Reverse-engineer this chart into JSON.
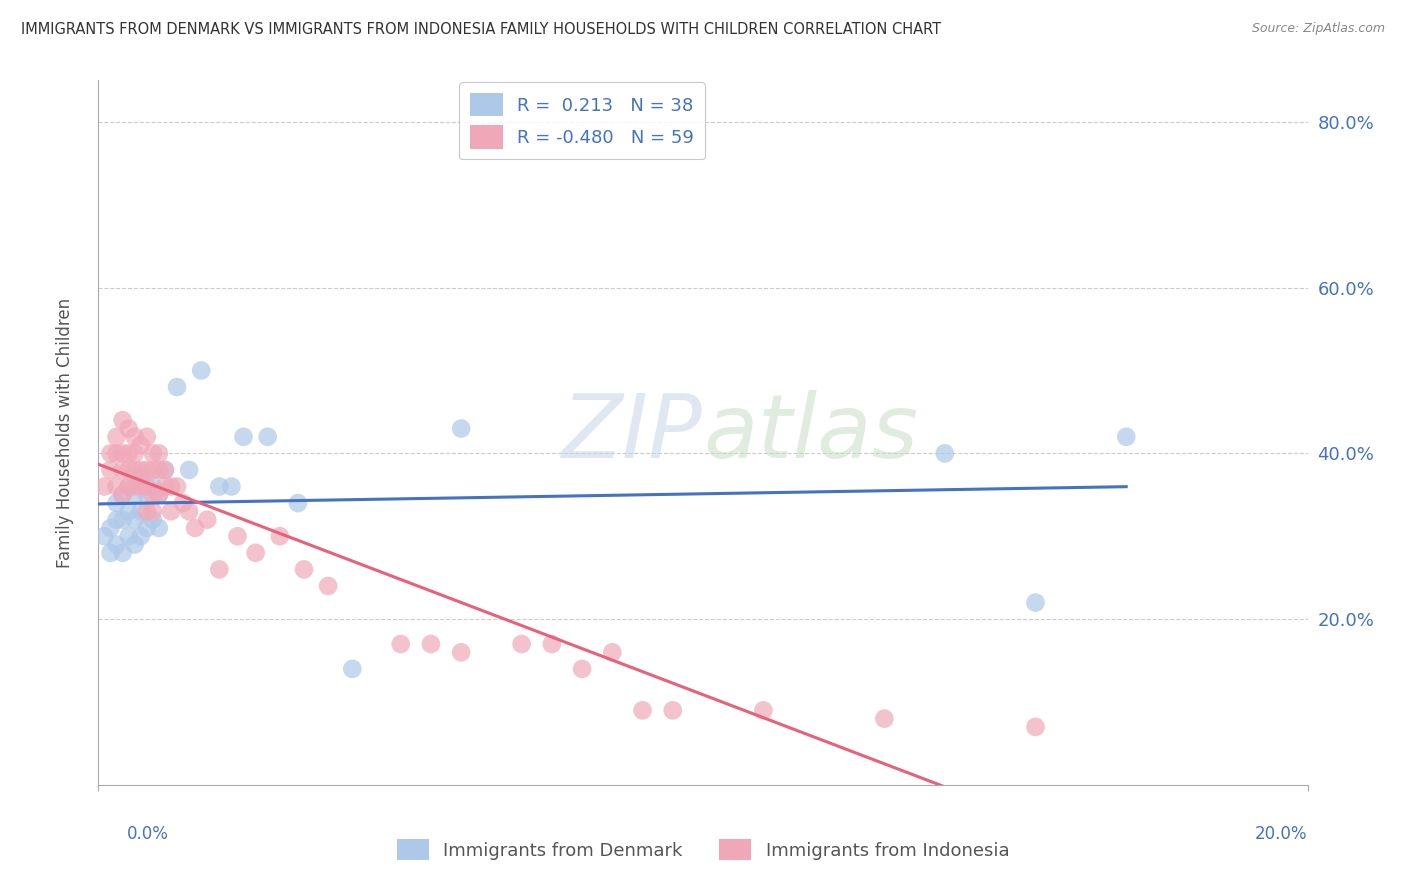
{
  "title": "IMMIGRANTS FROM DENMARK VS IMMIGRANTS FROM INDONESIA FAMILY HOUSEHOLDS WITH CHILDREN CORRELATION CHART",
  "source": "Source: ZipAtlas.com",
  "ylabel": "Family Households with Children",
  "r_denmark": 0.213,
  "n_denmark": 38,
  "r_indonesia": -0.48,
  "n_indonesia": 59,
  "color_denmark": "#adc8e8",
  "color_indonesia": "#f0a8b8",
  "line_color_denmark": "#4472c4",
  "line_color_indonesia": "#e8607a",
  "background_color": "#ffffff",
  "xlim": [
    0.0,
    0.2
  ],
  "ylim": [
    0.0,
    0.85
  ],
  "yticks": [
    0.2,
    0.4,
    0.6,
    0.8
  ],
  "denmark_x": [
    0.001,
    0.002,
    0.002,
    0.003,
    0.003,
    0.003,
    0.004,
    0.004,
    0.004,
    0.005,
    0.005,
    0.005,
    0.006,
    0.006,
    0.006,
    0.007,
    0.007,
    0.007,
    0.008,
    0.008,
    0.009,
    0.009,
    0.01,
    0.01,
    0.011,
    0.013,
    0.015,
    0.017,
    0.02,
    0.022,
    0.024,
    0.028,
    0.033,
    0.042,
    0.06,
    0.14,
    0.155,
    0.17
  ],
  "denmark_y": [
    0.3,
    0.28,
    0.31,
    0.29,
    0.32,
    0.34,
    0.28,
    0.32,
    0.35,
    0.3,
    0.33,
    0.36,
    0.29,
    0.32,
    0.35,
    0.3,
    0.33,
    0.37,
    0.31,
    0.35,
    0.32,
    0.36,
    0.31,
    0.35,
    0.38,
    0.48,
    0.38,
    0.5,
    0.36,
    0.36,
    0.42,
    0.42,
    0.34,
    0.14,
    0.43,
    0.4,
    0.22,
    0.42
  ],
  "indonesia_x": [
    0.001,
    0.002,
    0.002,
    0.003,
    0.003,
    0.003,
    0.004,
    0.004,
    0.004,
    0.004,
    0.005,
    0.005,
    0.005,
    0.005,
    0.006,
    0.006,
    0.006,
    0.006,
    0.007,
    0.007,
    0.007,
    0.008,
    0.008,
    0.008,
    0.008,
    0.009,
    0.009,
    0.009,
    0.009,
    0.01,
    0.01,
    0.01,
    0.011,
    0.011,
    0.012,
    0.012,
    0.013,
    0.014,
    0.015,
    0.016,
    0.018,
    0.02,
    0.023,
    0.026,
    0.03,
    0.034,
    0.038,
    0.05,
    0.055,
    0.06,
    0.07,
    0.075,
    0.08,
    0.085,
    0.09,
    0.095,
    0.11,
    0.13,
    0.155
  ],
  "indonesia_y": [
    0.36,
    0.4,
    0.38,
    0.42,
    0.4,
    0.36,
    0.44,
    0.4,
    0.38,
    0.35,
    0.43,
    0.4,
    0.38,
    0.36,
    0.42,
    0.4,
    0.38,
    0.36,
    0.41,
    0.38,
    0.36,
    0.42,
    0.38,
    0.36,
    0.33,
    0.4,
    0.38,
    0.35,
    0.33,
    0.4,
    0.38,
    0.35,
    0.38,
    0.36,
    0.36,
    0.33,
    0.36,
    0.34,
    0.33,
    0.31,
    0.32,
    0.26,
    0.3,
    0.28,
    0.3,
    0.26,
    0.24,
    0.17,
    0.17,
    0.16,
    0.17,
    0.17,
    0.14,
    0.16,
    0.09,
    0.09,
    0.09,
    0.08,
    0.07
  ]
}
